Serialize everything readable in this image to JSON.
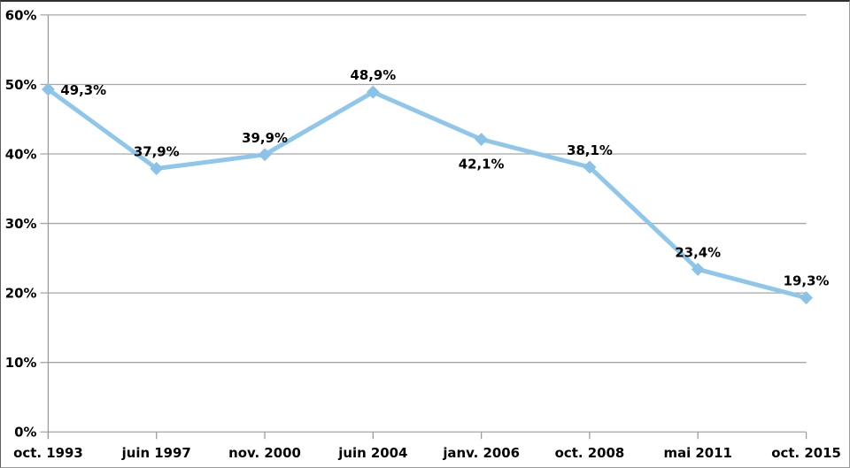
{
  "chart_data": {
    "type": "line",
    "title": "",
    "xlabel": "",
    "ylabel": "",
    "categories": [
      "oct. 1993",
      "juin 1997",
      "nov. 2000",
      "juin 2004",
      "janv. 2006",
      "oct. 2008",
      "mai 2011",
      "oct. 2015"
    ],
    "values": [
      49.3,
      37.9,
      39.9,
      48.9,
      42.1,
      38.1,
      23.4,
      19.3
    ],
    "data_labels": [
      "49,3%",
      "37,9%",
      "39,9%",
      "48,9%",
      "42,1%",
      "38,1%",
      "23,4%",
      "19,3%"
    ],
    "data_label_positions": [
      "right",
      "above",
      "above",
      "above",
      "below",
      "above",
      "above",
      "above"
    ],
    "y_tick_labels": [
      "60%",
      "50%",
      "40%",
      "30%",
      "20%",
      "10%",
      "0%"
    ],
    "ylim": [
      0,
      60
    ],
    "y_step": 10,
    "grid": "horizontal",
    "legend": "none",
    "marker": "diamond",
    "colors": {
      "series_line": "#8FC7EA",
      "marker_fill": "#8AC2E8",
      "gridline": "#A6A6A6",
      "axis_line": "#9B9B9B",
      "text": "#000000",
      "background": "#FFFFFF"
    }
  }
}
